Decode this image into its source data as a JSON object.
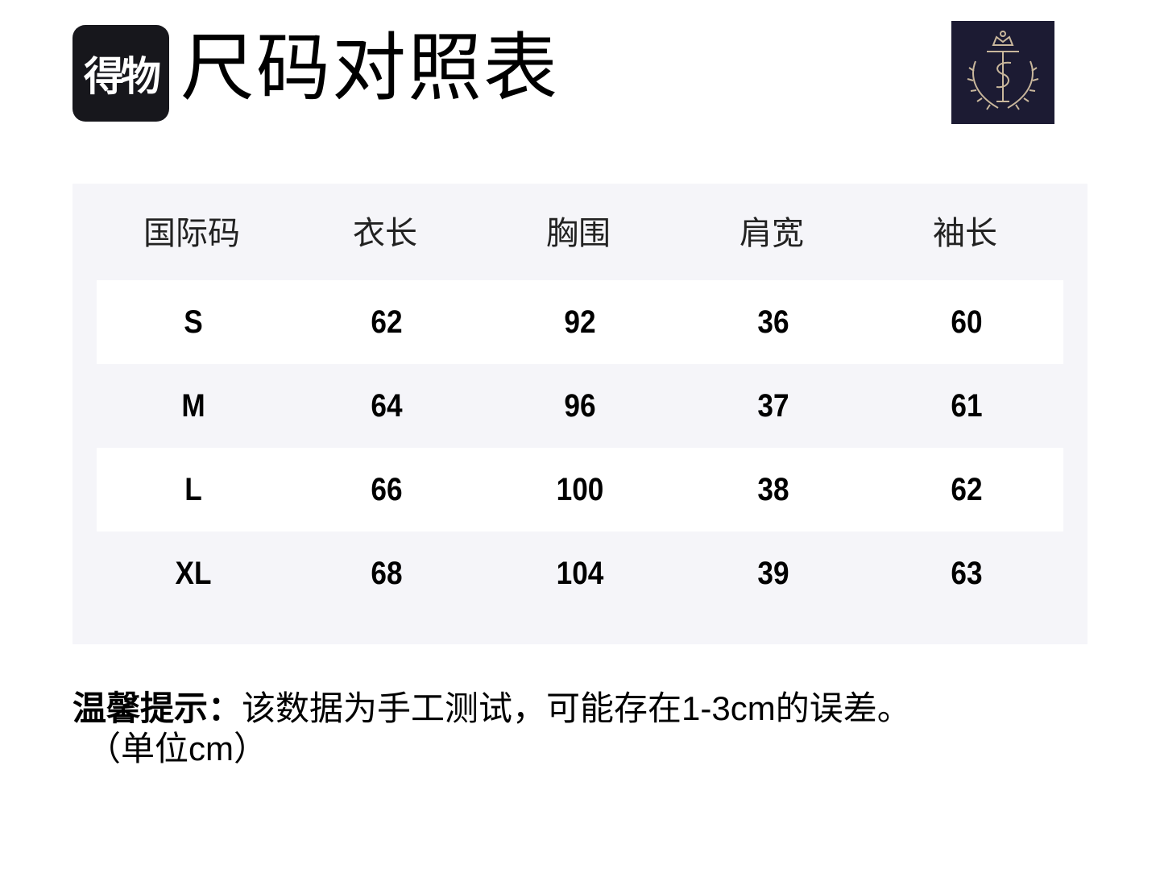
{
  "header": {
    "app_logo_text": "得物",
    "title": "尺码对照表",
    "brand_logo": "crest-crown-laurel-TS-monogram",
    "brand_colors": {
      "background": "#1c1b33",
      "emblem": "#c9b79c"
    }
  },
  "table": {
    "columns": [
      "国际码",
      "衣长",
      "胸围",
      "肩宽",
      "袖长"
    ],
    "rows": [
      [
        "S",
        "62",
        "92",
        "36",
        "60"
      ],
      [
        "M",
        "64",
        "96",
        "37",
        "61"
      ],
      [
        "L",
        "66",
        "100",
        "38",
        "62"
      ],
      [
        "XL",
        "68",
        "104",
        "39",
        "63"
      ]
    ]
  },
  "note": {
    "label": "温馨提示：",
    "text": "该数据为手工测试，可能存在1-3cm的误差。",
    "unit": "（单位cm）"
  }
}
